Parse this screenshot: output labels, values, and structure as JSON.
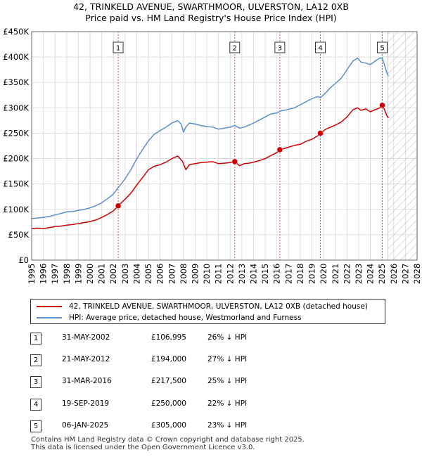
{
  "title_line1": "42, TRINKELD AVENUE, SWARTHMOOR, ULVERSTON, LA12 0XB",
  "title_line2": "Price paid vs. HM Land Registry's House Price Index (HPI)",
  "colors": {
    "property": "#cc0000",
    "hpi": "#5b8fd0",
    "marker_line": "#e05050",
    "grid": "#dddddd",
    "hatch": "#bbbbbb"
  },
  "chart_data": {
    "type": "line",
    "title": "Price paid vs. HM Land Registry's House Price Index (HPI)",
    "xlim": [
      1995,
      2028
    ],
    "ylim": [
      0,
      450000
    ],
    "x_ticks": [
      "1995",
      "1996",
      "1997",
      "1998",
      "1999",
      "2000",
      "2001",
      "2002",
      "2003",
      "2004",
      "2005",
      "2006",
      "2007",
      "2008",
      "2009",
      "2010",
      "2011",
      "2012",
      "2013",
      "2014",
      "2015",
      "2016",
      "2017",
      "2018",
      "2019",
      "2020",
      "2021",
      "2022",
      "2023",
      "2024",
      "2025",
      "2026",
      "2027",
      "2028"
    ],
    "y_ticks": [
      {
        "value": 0,
        "label": "£0"
      },
      {
        "value": 50000,
        "label": "£50K"
      },
      {
        "value": 100000,
        "label": "£100K"
      },
      {
        "value": 150000,
        "label": "£150K"
      },
      {
        "value": 200000,
        "label": "£200K"
      },
      {
        "value": 250000,
        "label": "£250K"
      },
      {
        "value": 300000,
        "label": "£300K"
      },
      {
        "value": 350000,
        "label": "£350K"
      },
      {
        "value": 400000,
        "label": "£400K"
      },
      {
        "value": 450000,
        "label": "£450K"
      }
    ],
    "hatch_from": 2025.5,
    "series": [
      {
        "name": "42, TRINKELD AVENUE, SWARTHMOOR, ULVERSTON, LA12 0XB (detached house)",
        "x": [
          1995.0,
          1995.5,
          1996.0,
          1996.5,
          1997.0,
          1997.5,
          1998.0,
          1998.5,
          1999.0,
          1999.5,
          2000.0,
          2000.5,
          2001.0,
          2001.5,
          2002.0,
          2002.42,
          2003.0,
          2003.5,
          2004.0,
          2004.5,
          2005.0,
          2005.5,
          2006.0,
          2006.5,
          2007.0,
          2007.5,
          2007.9,
          2008.2,
          2008.5,
          2009.0,
          2009.5,
          2010.0,
          2010.5,
          2011.0,
          2011.5,
          2012.0,
          2012.39,
          2012.8,
          2013.2,
          2013.6,
          2014.0,
          2014.5,
          2015.0,
          2015.5,
          2016.0,
          2016.25,
          2016.8,
          2017.5,
          2018.0,
          2018.5,
          2019.0,
          2019.5,
          2019.72,
          2020.2,
          2020.6,
          2021.0,
          2021.5,
          2022.0,
          2022.5,
          2022.9,
          2023.2,
          2023.6,
          2024.0,
          2024.4,
          2024.8,
          2025.02,
          2025.2,
          2025.4,
          2025.55
        ],
        "y": [
          62000,
          63000,
          62000,
          64000,
          66000,
          67000,
          69000,
          70000,
          72000,
          74000,
          76000,
          79000,
          84000,
          90000,
          97000,
          106995,
          120000,
          132000,
          148000,
          163000,
          178000,
          185000,
          188000,
          193000,
          200000,
          205000,
          195000,
          178000,
          188000,
          190000,
          192000,
          193000,
          194000,
          190000,
          191000,
          192000,
          194000,
          186000,
          190000,
          191000,
          193000,
          196000,
          200000,
          206000,
          212000,
          217500,
          221000,
          226000,
          228000,
          234000,
          238000,
          245000,
          250000,
          258000,
          262000,
          266000,
          272000,
          282000,
          296000,
          300000,
          295000,
          298000,
          292000,
          296000,
          300000,
          305000,
          297000,
          285000,
          280000
        ]
      },
      {
        "name": "HPI: Average price, detached house, Westmorland and Furness",
        "x": [
          1995.0,
          1995.5,
          1996.0,
          1996.5,
          1997.0,
          1997.5,
          1998.0,
          1998.5,
          1999.0,
          1999.5,
          2000.0,
          2000.5,
          2001.0,
          2001.5,
          2002.0,
          2002.42,
          2003.0,
          2003.5,
          2004.0,
          2004.5,
          2005.0,
          2005.5,
          2006.0,
          2006.5,
          2007.0,
          2007.5,
          2007.8,
          2008.0,
          2008.2,
          2008.5,
          2009.0,
          2009.5,
          2010.0,
          2010.5,
          2011.0,
          2011.5,
          2012.0,
          2012.39,
          2012.8,
          2013.2,
          2013.6,
          2014.0,
          2014.5,
          2015.0,
          2015.5,
          2016.0,
          2016.25,
          2016.8,
          2017.5,
          2018.0,
          2018.5,
          2019.0,
          2019.5,
          2019.72,
          2020.2,
          2020.6,
          2021.0,
          2021.5,
          2022.0,
          2022.5,
          2022.9,
          2023.2,
          2023.6,
          2024.0,
          2024.4,
          2024.8,
          2025.02,
          2025.2,
          2025.4,
          2025.55
        ],
        "y": [
          82000,
          83000,
          84000,
          86000,
          89000,
          92000,
          95000,
          96000,
          98000,
          100000,
          103000,
          107000,
          113000,
          121000,
          130000,
          143000,
          160000,
          178000,
          200000,
          218000,
          235000,
          248000,
          255000,
          262000,
          270000,
          275000,
          268000,
          252000,
          262000,
          270000,
          268000,
          265000,
          263000,
          262000,
          258000,
          260000,
          262000,
          265000,
          260000,
          262000,
          266000,
          270000,
          276000,
          282000,
          288000,
          290000,
          293000,
          296000,
          300000,
          306000,
          312000,
          318000,
          322000,
          320000,
          330000,
          340000,
          348000,
          358000,
          375000,
          392000,
          398000,
          390000,
          388000,
          385000,
          392000,
          398000,
          398000,
          385000,
          370000,
          362000
        ]
      }
    ],
    "sales": [
      {
        "num": "1",
        "date": "31-MAY-2002",
        "x": 2002.41,
        "price_value": 106995,
        "price": "£106,995",
        "hpi": "26% ↓ HPI"
      },
      {
        "num": "2",
        "date": "21-MAY-2012",
        "x": 2012.39,
        "price_value": 194000,
        "price": "£194,000",
        "hpi": "27% ↓ HPI"
      },
      {
        "num": "3",
        "date": "31-MAR-2016",
        "x": 2016.25,
        "price_value": 217500,
        "price": "£217,500",
        "hpi": "25% ↓ HPI"
      },
      {
        "num": "4",
        "date": "19-SEP-2019",
        "x": 2019.72,
        "price_value": 250000,
        "price": "£250,000",
        "hpi": "22% ↓ HPI"
      },
      {
        "num": "5",
        "date": "06-JAN-2025",
        "x": 2025.02,
        "price_value": 305000,
        "price": "£305,000",
        "hpi": "23% ↓ HPI"
      }
    ]
  },
  "legend": {
    "property_label": "42, TRINKELD AVENUE, SWARTHMOOR, ULVERSTON, LA12 0XB (detached house)",
    "hpi_label": "HPI: Average price, detached house, Westmorland and Furness"
  },
  "footer": {
    "line1": "Contains HM Land Registry data © Crown copyright and database right 2025.",
    "line2": "This data is licensed under the Open Government Licence v3.0."
  }
}
